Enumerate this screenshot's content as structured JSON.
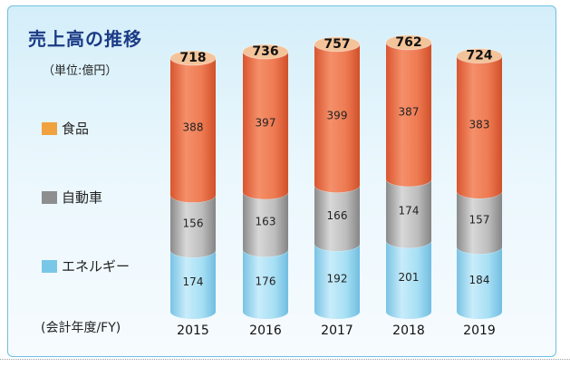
{
  "title": "売上高の推移",
  "unit_label": "（単位:億円）",
  "fy_label": "(会計年度/FY)",
  "legend": [
    {
      "label": "食品",
      "color": "#f0a23e",
      "icon": "legend-swatch-food"
    },
    {
      "label": "自動車",
      "color": "#8e8e8e",
      "icon": "legend-swatch-auto"
    },
    {
      "label": "エネルギー",
      "color": "#79c7e6",
      "icon": "legend-swatch-energy"
    }
  ],
  "colors": {
    "food": "#e8734e",
    "auto": "#a9a9a9",
    "energy": "#8ed4ef",
    "cap": "#f3c39a",
    "text": "#222222"
  },
  "chart_data": {
    "type": "bar",
    "stacked": true,
    "categories": [
      "2015",
      "2016",
      "2017",
      "2018",
      "2019"
    ],
    "series": [
      {
        "name": "エネルギー",
        "values": [
          174,
          176,
          192,
          201,
          184
        ]
      },
      {
        "name": "自動車",
        "values": [
          156,
          163,
          166,
          174,
          157
        ]
      },
      {
        "name": "食品",
        "values": [
          388,
          397,
          399,
          387,
          383
        ]
      }
    ],
    "totals": [
      718,
      736,
      757,
      762,
      724
    ],
    "title": "売上高の推移",
    "xlabel": "(会計年度/FY)",
    "ylabel": "",
    "unit": "億円",
    "ylim": [
      0,
      800
    ],
    "grid": false,
    "legend_position": "left"
  }
}
